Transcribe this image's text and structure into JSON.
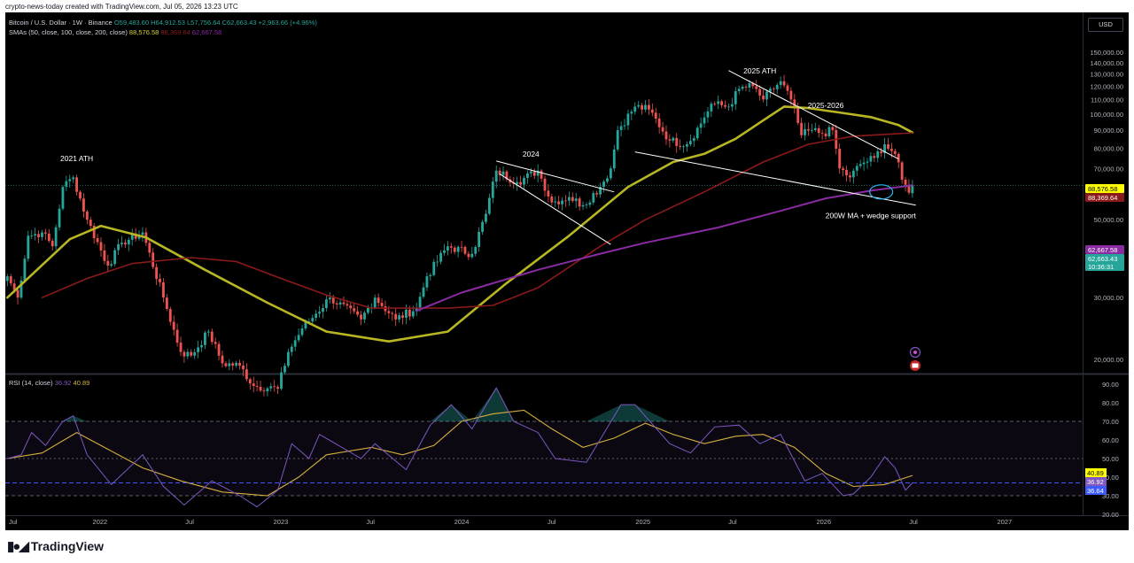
{
  "credit": "crypto-news-today created with TradingView.com, Jul 05, 2026 13:23 UTC",
  "legend": {
    "symbol": "Bitcoin / U.S. Dollar · 1W · Binance",
    "o": "O59,483.60",
    "h": "H64,912.53",
    "l": "L57,756.64",
    "c": "C62,663.43",
    "chg": "+2,963.66 (+4.96%)",
    "sma_label": "SMAs (50, close, 100, close, 200, close)",
    "sma50": "88,576.58",
    "sma100": "88,369.64",
    "sma200": "62,667.58",
    "rsi_label": "RSI (14, close)",
    "rsi": "36.92",
    "rsi_ma": "40.89"
  },
  "currency": "USD",
  "colors": {
    "up": "#26a69a",
    "down": "#ef5350",
    "sma50": "#b9b623",
    "sma100": "#8b1a1a",
    "sma200": "#8a2ba3",
    "rsi": "#7e57c2",
    "rsi_ma": "#d6b03e",
    "annotation": "#ffffff",
    "circle": "#29b6f6"
  },
  "icons": [
    "calendar-icon",
    "flag-icon"
  ],
  "brand": "TradingView",
  "chart_data": {
    "type": "candlestick",
    "timeframe": "1W",
    "x_ticks": [
      "Jul",
      "2022",
      "Jul",
      "2023",
      "Jul",
      "2024",
      "Jul",
      "2025",
      "Jul",
      "2026",
      "Jul",
      "2027"
    ],
    "x_tick_dates": [
      "2021-07-01",
      "2022-01-01",
      "2022-07-01",
      "2023-01-01",
      "2023-07-01",
      "2024-01-01",
      "2024-07-01",
      "2025-01-01",
      "2025-07-01",
      "2026-01-01",
      "2026-07-01",
      "2027-01-01"
    ],
    "y_ticks": [
      "20,000.00",
      "30,000.00",
      "40,000.00",
      "50,000.00",
      "60,000.00",
      "70,000.00",
      "80,000.00",
      "90,000.00",
      "100,000.00",
      "110,000.00",
      "120,000.00",
      "130,000.00",
      "140,000.00",
      "150,000.00"
    ],
    "y_tick_values": [
      20000,
      30000,
      40000,
      50000,
      60000,
      70000,
      80000,
      90000,
      100000,
      110000,
      120000,
      130000,
      140000,
      150000
    ],
    "ylim": [
      14000,
      160000
    ],
    "close_anchors": [
      [
        "2021-06-28",
        34500
      ],
      [
        "2021-07-19",
        30000
      ],
      [
        "2021-08-09",
        45000
      ],
      [
        "2021-09-06",
        46000
      ],
      [
        "2021-09-27",
        42000
      ],
      [
        "2021-10-18",
        62000
      ],
      [
        "2021-11-08",
        66000
      ],
      [
        "2021-12-06",
        50000
      ],
      [
        "2022-01-17",
        37000
      ],
      [
        "2022-02-14",
        43000
      ],
      [
        "2022-03-28",
        46000
      ],
      [
        "2022-05-09",
        30000
      ],
      [
        "2022-06-13",
        21000
      ],
      [
        "2022-07-04",
        20500
      ],
      [
        "2022-08-08",
        24000
      ],
      [
        "2022-09-05",
        19500
      ],
      [
        "2022-10-10",
        19200
      ],
      [
        "2022-11-07",
        16800
      ],
      [
        "2022-12-26",
        16500
      ],
      [
        "2023-01-16",
        21000
      ],
      [
        "2023-02-13",
        24500
      ],
      [
        "2023-03-13",
        27000
      ],
      [
        "2023-04-10",
        30000
      ],
      [
        "2023-06-12",
        26000
      ],
      [
        "2023-07-10",
        30000
      ],
      [
        "2023-08-21",
        26000
      ],
      [
        "2023-10-02",
        28000
      ],
      [
        "2023-10-23",
        34500
      ],
      [
        "2023-12-04",
        42000
      ],
      [
        "2024-01-22",
        40000
      ],
      [
        "2024-02-19",
        52000
      ],
      [
        "2024-03-11",
        69000
      ],
      [
        "2024-04-22",
        64000
      ],
      [
        "2024-06-03",
        69000
      ],
      [
        "2024-07-01",
        56000
      ],
      [
        "2024-08-05",
        58000
      ],
      [
        "2024-09-02",
        55000
      ],
      [
        "2024-10-07",
        62000
      ],
      [
        "2024-10-28",
        70000
      ],
      [
        "2024-11-11",
        90000
      ],
      [
        "2024-12-16",
        105000
      ],
      [
        "2025-01-13",
        103000
      ],
      [
        "2025-02-24",
        84000
      ],
      [
        "2025-03-31",
        82000
      ],
      [
        "2025-04-28",
        94000
      ],
      [
        "2025-05-19",
        107000
      ],
      [
        "2025-06-23",
        105000
      ],
      [
        "2025-07-14",
        118000
      ],
      [
        "2025-08-11",
        120000
      ],
      [
        "2025-09-01",
        110000
      ],
      [
        "2025-10-06",
        124000
      ],
      [
        "2025-10-27",
        110000
      ],
      [
        "2025-11-17",
        87000
      ],
      [
        "2025-12-08",
        90000
      ],
      [
        "2025-12-29",
        88000
      ],
      [
        "2026-01-19",
        90000
      ],
      [
        "2026-02-02",
        70000
      ],
      [
        "2026-02-23",
        66000
      ],
      [
        "2026-03-16",
        72000
      ],
      [
        "2026-04-13",
        75000
      ],
      [
        "2026-05-04",
        82000
      ],
      [
        "2026-05-25",
        77000
      ],
      [
        "2026-06-08",
        65000
      ],
      [
        "2026-06-22",
        59700
      ],
      [
        "2026-06-29",
        62663
      ]
    ],
    "last_candle": {
      "open": 59483.6,
      "high": 64912.53,
      "low": 57756.64,
      "close": 62663.43
    },
    "series": [
      {
        "name": "SMA 50",
        "last": 88576.58,
        "points": [
          [
            "2021-06-28",
            30000
          ],
          [
            "2021-11-01",
            44000
          ],
          [
            "2022-01-03",
            48000
          ],
          [
            "2022-04-04",
            44500
          ],
          [
            "2022-08-01",
            36000
          ],
          [
            "2022-12-05",
            29000
          ],
          [
            "2023-04-03",
            24000
          ],
          [
            "2023-08-07",
            22500
          ],
          [
            "2023-12-04",
            24000
          ],
          [
            "2024-04-01",
            33000
          ],
          [
            "2024-08-05",
            45000
          ],
          [
            "2024-12-02",
            62000
          ],
          [
            "2025-03-03",
            73000
          ],
          [
            "2025-05-05",
            77000
          ],
          [
            "2025-07-07",
            85000
          ],
          [
            "2025-09-01",
            96000
          ],
          [
            "2025-10-13",
            105000
          ],
          [
            "2025-12-01",
            104000
          ],
          [
            "2026-02-02",
            101000
          ],
          [
            "2026-04-06",
            98000
          ],
          [
            "2026-06-01",
            93000
          ],
          [
            "2026-06-29",
            88576.58
          ]
        ]
      },
      {
        "name": "SMA 100",
        "last": 88369.64,
        "points": [
          [
            "2021-09-06",
            30000
          ],
          [
            "2021-12-06",
            34000
          ],
          [
            "2022-03-07",
            37500
          ],
          [
            "2022-07-04",
            39000
          ],
          [
            "2022-10-03",
            38000
          ],
          [
            "2023-01-02",
            34000
          ],
          [
            "2023-04-03",
            30500
          ],
          [
            "2023-07-03",
            28000
          ],
          [
            "2023-12-04",
            28000
          ],
          [
            "2024-03-04",
            28500
          ],
          [
            "2024-06-03",
            32000
          ],
          [
            "2024-10-07",
            42000
          ],
          [
            "2025-01-06",
            50000
          ],
          [
            "2025-05-05",
            60000
          ],
          [
            "2025-09-01",
            73000
          ],
          [
            "2025-12-01",
            82000
          ],
          [
            "2026-03-02",
            86500
          ],
          [
            "2026-06-29",
            88369.64
          ]
        ]
      },
      {
        "name": "SMA 200",
        "last": 62667.58,
        "points": [
          [
            "2023-10-02",
            27500
          ],
          [
            "2024-01-01",
            31000
          ],
          [
            "2024-06-03",
            36000
          ],
          [
            "2024-10-07",
            40000
          ],
          [
            "2025-01-06",
            43000
          ],
          [
            "2025-06-02",
            47500
          ],
          [
            "2025-10-06",
            53000
          ],
          [
            "2026-01-05",
            57500
          ],
          [
            "2026-04-06",
            60500
          ],
          [
            "2026-06-29",
            62667.58
          ]
        ]
      }
    ],
    "trendlines": [
      {
        "name": "2024 upper",
        "from": [
          "2024-03-11",
          73500
        ],
        "to": [
          "2024-11-04",
          60000
        ]
      },
      {
        "name": "2024 lower",
        "from": [
          "2024-03-18",
          67500
        ],
        "to": [
          "2024-10-28",
          42500
        ]
      },
      {
        "name": "2025-2026 upper",
        "from": [
          "2025-06-23",
          133000
        ],
        "to": [
          "2026-06-01",
          74500
        ]
      },
      {
        "name": "2025-2026 lower",
        "from": [
          "2024-12-16",
          78000
        ],
        "to": [
          "2026-07-06",
          55000
        ]
      }
    ],
    "annotations": [
      {
        "text": "2021 ATH",
        "x": "2021-11-15",
        "y": 73500
      },
      {
        "text": "2024",
        "x": "2024-05-20",
        "y": 75500
      },
      {
        "text": "2025 ATH",
        "x": "2025-08-25",
        "y": 130500
      },
      {
        "text": "2025-2026",
        "x": "2026-01-05",
        "y": 104000
      },
      {
        "text": "200W MA + wedge support",
        "x": "2026-04-06",
        "y": 50500
      }
    ],
    "highlight_circle": {
      "x": "2026-04-27",
      "y": 60000
    },
    "price_tags": [
      {
        "label": "88,576.58",
        "value": 88576.58,
        "kind": "sma50"
      },
      {
        "label": "88,369.64",
        "value": 88369.64,
        "kind": "sma100"
      },
      {
        "label": "62,667.58",
        "value": 62667.58,
        "kind": "sma200"
      },
      {
        "label": "62,663.43",
        "value": 62663.43,
        "kind": "price"
      },
      {
        "label": "10:36:31",
        "value": 59000,
        "kind": "countdown"
      }
    ],
    "rsi": {
      "name": "RSI (14, close)",
      "last": 36.92,
      "ma_last": 40.89,
      "ma_name": "RSI-based MA",
      "y_ticks": [
        "20.00",
        "30.00",
        "40.00",
        "50.00",
        "60.00",
        "70.00",
        "80.00",
        "90.00"
      ],
      "y_tick_values": [
        20,
        30,
        40,
        50,
        60,
        70,
        80,
        90
      ],
      "ylim": [
        18,
        93
      ],
      "bands": [
        30,
        50,
        70
      ],
      "price_tags": [
        {
          "label": "40.89",
          "value": 40.89,
          "kind": "ma"
        },
        {
          "label": "36.92",
          "value": 36.92,
          "kind": "rsi"
        },
        {
          "label": "36.64",
          "value": 36.64,
          "kind": "rsi2"
        }
      ],
      "rsi_points": [
        [
          "2021-06-28",
          50
        ],
        [
          "2021-07-26",
          52
        ],
        [
          "2021-08-16",
          64
        ],
        [
          "2021-09-13",
          57
        ],
        [
          "2021-10-18",
          70
        ],
        [
          "2021-11-08",
          73
        ],
        [
          "2021-12-06",
          52
        ],
        [
          "2022-01-24",
          36
        ],
        [
          "2022-03-28",
          52
        ],
        [
          "2022-05-09",
          35
        ],
        [
          "2022-06-20",
          25
        ],
        [
          "2022-08-15",
          38
        ],
        [
          "2022-10-10",
          30
        ],
        [
          "2022-11-14",
          24
        ],
        [
          "2022-12-26",
          33
        ],
        [
          "2023-01-23",
          58
        ],
        [
          "2023-02-27",
          50
        ],
        [
          "2023-03-20",
          63
        ],
        [
          "2023-06-12",
          50
        ],
        [
          "2023-07-10",
          58
        ],
        [
          "2023-09-11",
          44
        ],
        [
          "2023-10-30",
          68
        ],
        [
          "2023-12-11",
          79
        ],
        [
          "2024-01-22",
          66
        ],
        [
          "2024-03-11",
          88
        ],
        [
          "2024-04-15",
          70
        ],
        [
          "2024-06-03",
          64
        ],
        [
          "2024-07-08",
          50
        ],
        [
          "2024-09-09",
          48
        ],
        [
          "2024-11-18",
          79
        ],
        [
          "2024-12-16",
          79
        ],
        [
          "2025-02-24",
          58
        ],
        [
          "2025-04-07",
          53
        ],
        [
          "2025-05-26",
          67
        ],
        [
          "2025-07-14",
          68
        ],
        [
          "2025-08-25",
          58
        ],
        [
          "2025-10-06",
          63
        ],
        [
          "2025-11-24",
          38
        ],
        [
          "2025-12-29",
          42
        ],
        [
          "2026-02-09",
          30
        ],
        [
          "2026-03-02",
          31
        ],
        [
          "2026-04-06",
          40
        ],
        [
          "2026-05-04",
          51
        ],
        [
          "2026-05-25",
          45
        ],
        [
          "2026-06-15",
          33
        ],
        [
          "2026-06-29",
          36.92
        ]
      ],
      "ma_points": [
        [
          "2021-06-28",
          50
        ],
        [
          "2021-09-06",
          53
        ],
        [
          "2021-11-15",
          64
        ],
        [
          "2022-01-10",
          56
        ],
        [
          "2022-03-28",
          45
        ],
        [
          "2022-06-13",
          38
        ],
        [
          "2022-09-05",
          32
        ],
        [
          "2022-12-05",
          30
        ],
        [
          "2023-02-06",
          40
        ],
        [
          "2023-04-03",
          52
        ],
        [
          "2023-07-03",
          56
        ],
        [
          "2023-09-04",
          52
        ],
        [
          "2023-11-06",
          57
        ],
        [
          "2024-01-01",
          70
        ],
        [
          "2024-03-04",
          74
        ],
        [
          "2024-05-06",
          76
        ],
        [
          "2024-07-01",
          66
        ],
        [
          "2024-09-02",
          56
        ],
        [
          "2024-11-04",
          61
        ],
        [
          "2025-01-06",
          69
        ],
        [
          "2025-03-03",
          63
        ],
        [
          "2025-05-05",
          58
        ],
        [
          "2025-07-07",
          62
        ],
        [
          "2025-09-01",
          63
        ],
        [
          "2025-11-03",
          56
        ],
        [
          "2026-01-05",
          42
        ],
        [
          "2026-03-02",
          35
        ],
        [
          "2026-05-04",
          36
        ],
        [
          "2026-06-29",
          40.89
        ]
      ]
    }
  }
}
